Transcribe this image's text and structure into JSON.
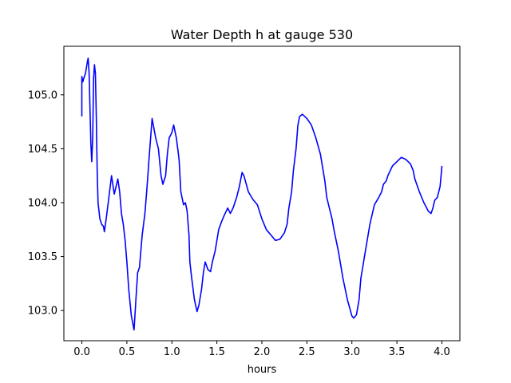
{
  "chart_data": {
    "type": "line",
    "title": "Water Depth h at gauge 530",
    "xlabel": "hours",
    "ylabel": "",
    "xlim": [
      -0.2,
      4.2
    ],
    "ylim": [
      102.72,
      105.45
    ],
    "xticks": [
      0.0,
      0.5,
      1.0,
      1.5,
      2.0,
      2.5,
      3.0,
      3.5,
      4.0
    ],
    "xtick_labels": [
      "0.0",
      "0.5",
      "1.0",
      "1.5",
      "2.0",
      "2.5",
      "3.0",
      "3.5",
      "4.0"
    ],
    "yticks": [
      103.0,
      103.5,
      104.0,
      104.5,
      105.0
    ],
    "ytick_labels": [
      "103.0",
      "103.5",
      "104.0",
      "104.5",
      "105.0"
    ],
    "grid": false,
    "legend": "none",
    "series": [
      {
        "color": "#0000ff",
        "x": [
          0.0,
          0.0,
          0.01,
          0.02,
          0.04,
          0.06,
          0.07,
          0.08,
          0.1,
          0.11,
          0.12,
          0.13,
          0.14,
          0.15,
          0.16,
          0.17,
          0.18,
          0.2,
          0.22,
          0.24,
          0.25,
          0.27,
          0.3,
          0.33,
          0.36,
          0.38,
          0.4,
          0.42,
          0.44,
          0.46,
          0.48,
          0.5,
          0.52,
          0.55,
          0.58,
          0.6,
          0.62,
          0.64,
          0.65,
          0.67,
          0.7,
          0.72,
          0.75,
          0.78,
          0.82,
          0.85,
          0.88,
          0.9,
          0.93,
          0.95,
          0.97,
          1.0,
          1.02,
          1.05,
          1.08,
          1.1,
          1.13,
          1.15,
          1.17,
          1.18,
          1.19,
          1.2,
          1.22,
          1.25,
          1.28,
          1.3,
          1.33,
          1.35,
          1.37,
          1.4,
          1.43,
          1.45,
          1.48,
          1.52,
          1.55,
          1.58,
          1.62,
          1.65,
          1.68,
          1.72,
          1.75,
          1.78,
          1.8,
          1.85,
          1.9,
          1.95,
          2.0,
          2.05,
          2.08,
          2.1,
          2.13,
          2.15,
          2.2,
          2.25,
          2.28,
          2.3,
          2.33,
          2.35,
          2.38,
          2.4,
          2.42,
          2.45,
          2.5,
          2.55,
          2.6,
          2.65,
          2.7,
          2.72,
          2.75,
          2.78,
          2.8,
          2.85,
          2.9,
          2.95,
          3.0,
          3.02,
          3.05,
          3.08,
          3.1,
          3.15,
          3.2,
          3.25,
          3.3,
          3.33,
          3.35,
          3.38,
          3.4,
          3.45,
          3.5,
          3.55,
          3.6,
          3.65,
          3.68,
          3.7,
          3.75,
          3.8,
          3.85,
          3.88,
          3.9,
          3.92,
          3.95,
          3.98,
          4.0
        ],
        "y": [
          104.8,
          105.17,
          105.12,
          105.15,
          105.2,
          105.3,
          105.34,
          105.2,
          104.55,
          104.38,
          104.6,
          105.15,
          105.28,
          105.2,
          104.8,
          104.3,
          104.0,
          103.85,
          103.8,
          103.78,
          103.73,
          103.85,
          104.05,
          104.25,
          104.08,
          104.15,
          104.22,
          104.1,
          103.9,
          103.8,
          103.65,
          103.45,
          103.2,
          102.95,
          102.82,
          103.1,
          103.35,
          103.4,
          103.5,
          103.7,
          103.9,
          104.1,
          104.45,
          104.78,
          104.6,
          104.5,
          104.25,
          104.17,
          104.25,
          104.45,
          104.6,
          104.65,
          104.72,
          104.6,
          104.4,
          104.1,
          103.98,
          104.0,
          103.92,
          103.8,
          103.7,
          103.45,
          103.3,
          103.1,
          102.99,
          103.05,
          103.2,
          103.35,
          103.45,
          103.38,
          103.36,
          103.45,
          103.55,
          103.75,
          103.82,
          103.88,
          103.95,
          103.9,
          103.95,
          104.05,
          104.15,
          104.28,
          104.25,
          104.1,
          104.03,
          103.98,
          103.85,
          103.75,
          103.72,
          103.7,
          103.67,
          103.65,
          103.66,
          103.72,
          103.8,
          103.95,
          104.1,
          104.3,
          104.5,
          104.72,
          104.8,
          104.82,
          104.78,
          104.72,
          104.6,
          104.45,
          104.2,
          104.05,
          103.95,
          103.85,
          103.75,
          103.55,
          103.3,
          103.1,
          102.95,
          102.93,
          102.96,
          103.1,
          103.3,
          103.55,
          103.8,
          103.98,
          104.05,
          104.1,
          104.17,
          104.2,
          104.25,
          104.34,
          104.38,
          104.42,
          104.4,
          104.36,
          104.3,
          104.22,
          104.1,
          104.0,
          103.92,
          103.9,
          103.95,
          104.02,
          104.05,
          104.15,
          104.34
        ]
      }
    ]
  }
}
